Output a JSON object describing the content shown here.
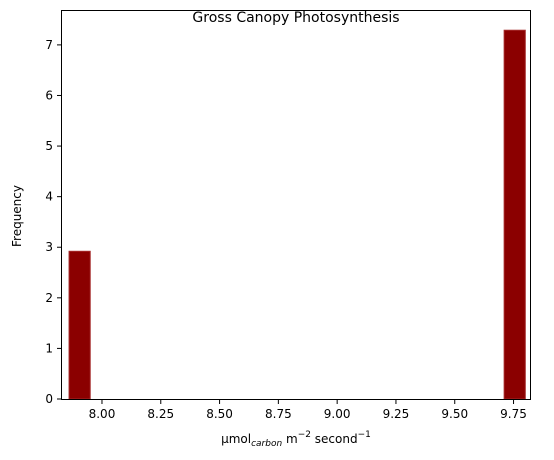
{
  "chart_data": {
    "type": "bar",
    "title": "Gross Canopy Photosynthesis",
    "xlabel": {
      "base": "µmol",
      "subscript": "carbon",
      "unit_m": " m",
      "exp_m": "−2",
      "unit_s": " second",
      "exp_s": "−1"
    },
    "ylabel": "Frequency",
    "xlim": [
      7.83,
      9.82
    ],
    "ylim": [
      0,
      7.67
    ],
    "xticks": [
      8.0,
      8.25,
      8.5,
      8.75,
      9.0,
      9.25,
      9.5,
      9.75
    ],
    "xtick_labels": [
      "8.00",
      "8.25",
      "8.50",
      "8.75",
      "9.00",
      "9.25",
      "9.50",
      "9.75"
    ],
    "yticks": [
      0,
      1,
      2,
      3,
      4,
      5,
      6,
      7
    ],
    "ytick_labels": [
      "0",
      "1",
      "2",
      "3",
      "4",
      "5",
      "6",
      "7"
    ],
    "bars": [
      {
        "x_start": 7.86,
        "x_end": 7.95,
        "value": 2.92
      },
      {
        "x_start": 9.71,
        "x_end": 9.8,
        "value": 7.29
      }
    ],
    "bar_color": "#8b0000",
    "bar_edge_color": "#a52a2a",
    "grid": false,
    "legend": "none"
  }
}
